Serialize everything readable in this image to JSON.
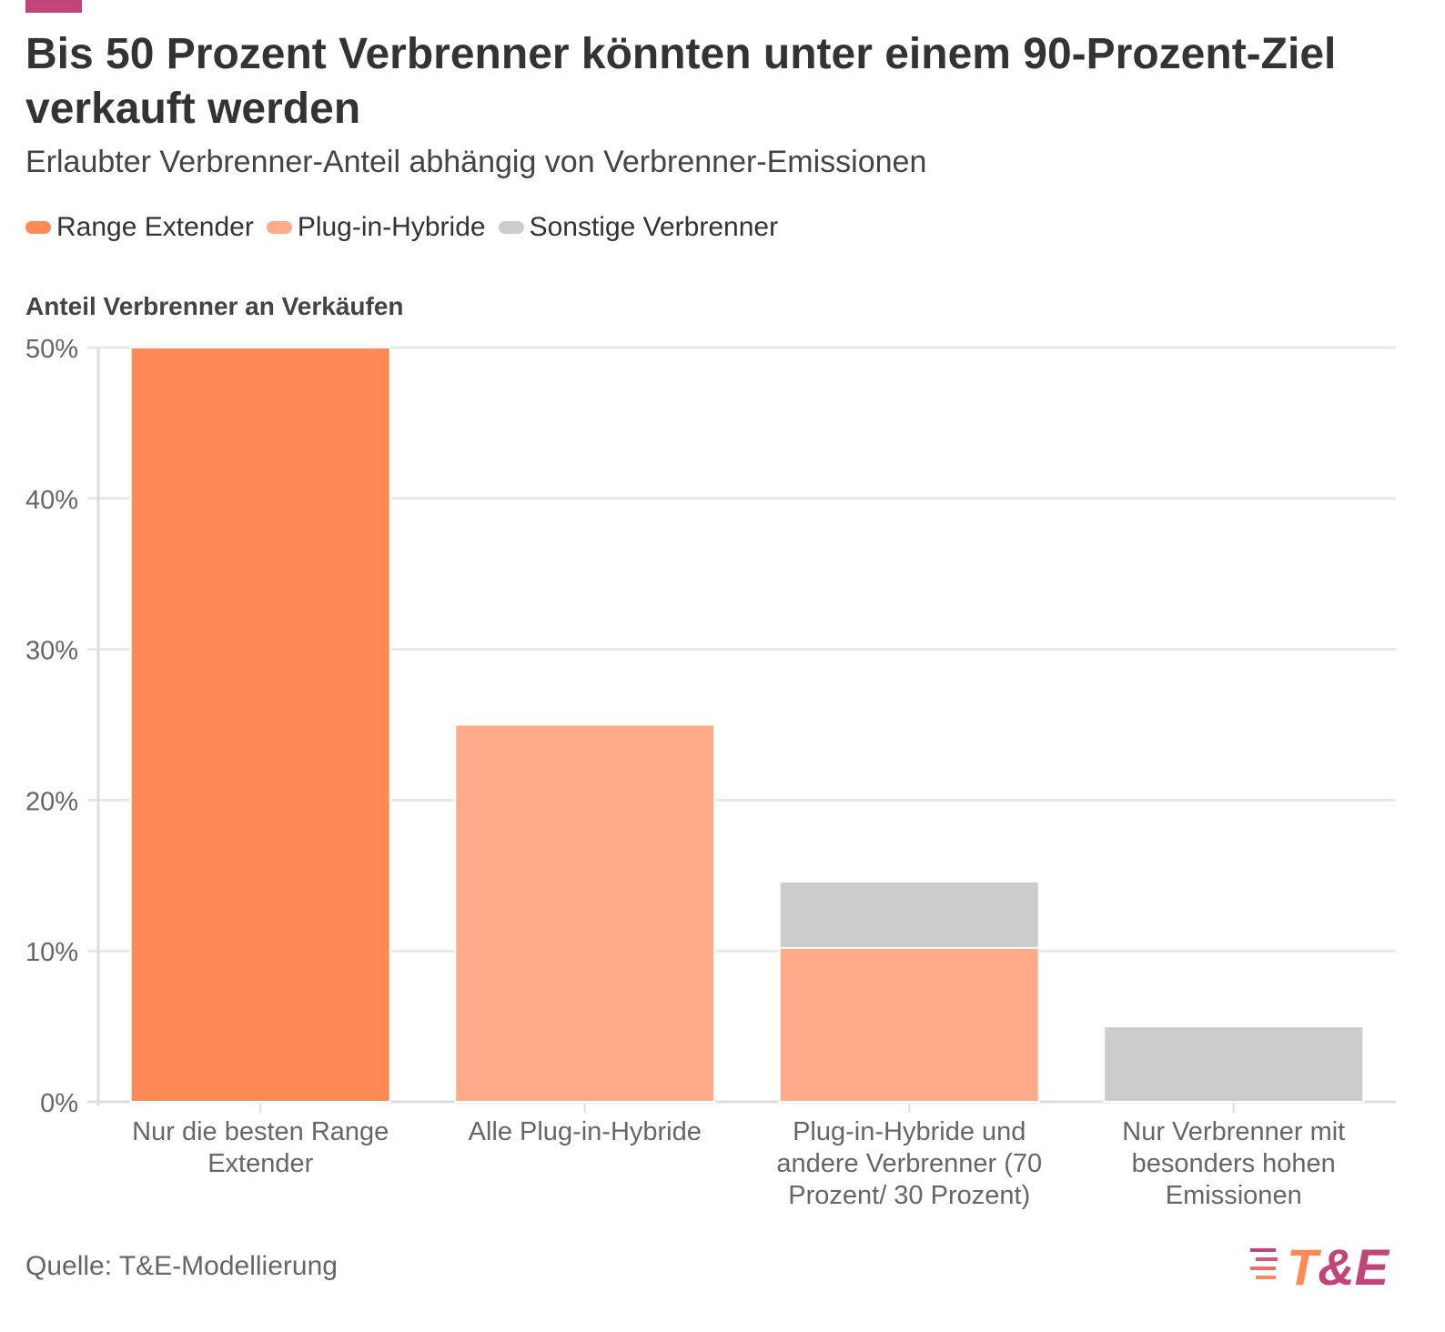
{
  "title": "Bis 50 Prozent Verbrenner könnten unter einem 90-Prozent-Ziel verkauft werden",
  "subtitle": "Erlaubter Verbrenner-Anteil abhängig von Verbrenner-Emissionen",
  "legend": [
    {
      "label": "Range Extender",
      "color": "#ff8a56"
    },
    {
      "label": "Plug-in-Hybride",
      "color": "#ffab89"
    },
    {
      "label": "Sonstige Verbrenner",
      "color": "#cccccc"
    }
  ],
  "source": "Quelle: T&E-Modellierung",
  "logo_text": "T&E",
  "chart_data": {
    "type": "bar",
    "stacked": true,
    "title": "Bis 50 Prozent Verbrenner könnten unter einem 90-Prozent-Ziel verkauft werden",
    "ylabel": "Anteil Verbrenner an Verkäufen",
    "xlabel": "",
    "ylim": [
      0,
      50
    ],
    "yticks": [
      0,
      10,
      20,
      30,
      40,
      50
    ],
    "ytick_labels": [
      "0%",
      "10%",
      "20%",
      "30%",
      "40%",
      "50%"
    ],
    "grid": true,
    "legend_position": "top-left",
    "categories": [
      [
        "Nur die besten Range",
        "Extender"
      ],
      [
        "Alle Plug-in-Hybride"
      ],
      [
        "Plug-in-Hybride und",
        "andere Verbrenner (70",
        "Prozent/ 30 Prozent)"
      ],
      [
        "Nur Verbrenner mit",
        "besonders hohen",
        "Emissionen"
      ]
    ],
    "series": [
      {
        "name": "Range Extender",
        "color": "#ff8a56",
        "values": [
          50,
          0,
          0,
          0
        ]
      },
      {
        "name": "Plug-in-Hybride",
        "color": "#ffab89",
        "values": [
          0,
          25,
          10.2,
          0
        ]
      },
      {
        "name": "Sonstige Verbrenner",
        "color": "#cccccc",
        "values": [
          0,
          0,
          4.4,
          5
        ]
      }
    ]
  }
}
